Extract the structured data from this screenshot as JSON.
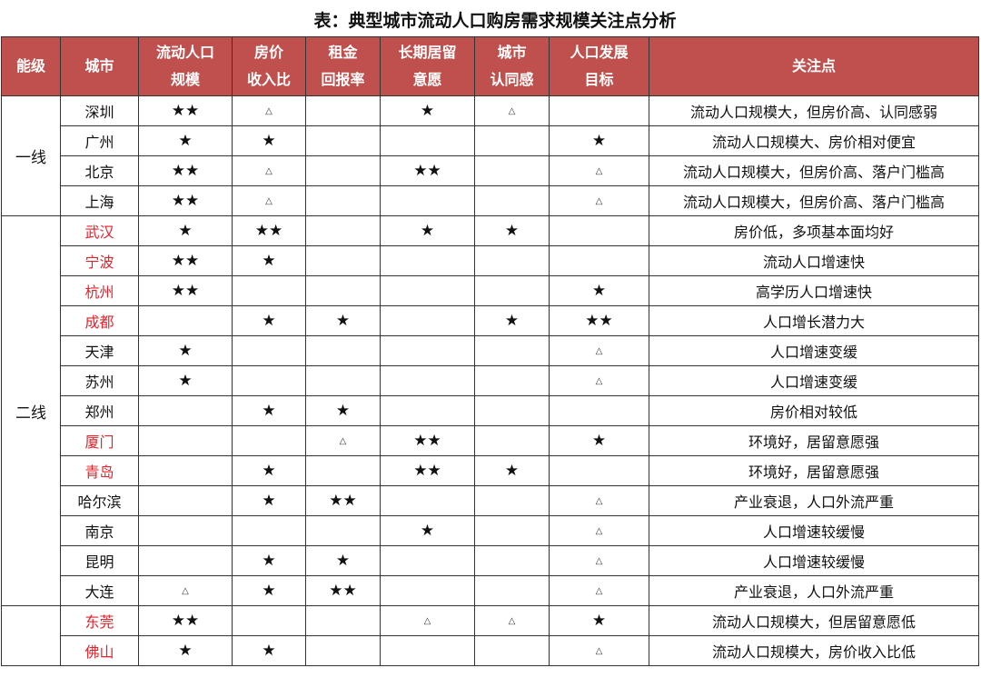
{
  "title": "表：典型城市流动人口购房需求规模关注点分析",
  "colors": {
    "header_bg": "#c0504d",
    "highlight_city": "#e8202a"
  },
  "legend_symbols": {
    "strong": "★",
    "very_strong": "★★",
    "weak": "△"
  },
  "columns": [
    "能级",
    "城市",
    "流动人口\n规模",
    "房价\n收入比",
    "租金\n回报率",
    "长期居留\n意愿",
    "城市\n认同感",
    "人口发展\n目标",
    "关注点"
  ],
  "column_lines": [
    [
      "能级"
    ],
    [
      "城市"
    ],
    [
      "流动人口",
      "规模"
    ],
    [
      "房价",
      "收入比"
    ],
    [
      "租金",
      "回报率"
    ],
    [
      "长期居留",
      "意愿"
    ],
    [
      "城市",
      "认同感"
    ],
    [
      "人口发展",
      "目标"
    ],
    [
      "关注点"
    ]
  ],
  "tiers": [
    {
      "label": "一线",
      "rows": 4
    },
    {
      "label": "二线",
      "rows": 13
    },
    {
      "label": "",
      "rows": 2
    }
  ],
  "rows": [
    {
      "city": "深圳",
      "highlight": false,
      "v": [
        "★★",
        "△",
        "",
        "★",
        "△",
        ""
      ],
      "note": "流动人口规模大，但房价高、认同感弱"
    },
    {
      "city": "广州",
      "highlight": false,
      "v": [
        "★",
        "★",
        "",
        "",
        "",
        "★"
      ],
      "note": "流动人口规模大、房价相对便宜"
    },
    {
      "city": "北京",
      "highlight": false,
      "v": [
        "★★",
        "△",
        "",
        "★★",
        "",
        "△"
      ],
      "note": "流动人口规模大，但房价高、落户门槛高"
    },
    {
      "city": "上海",
      "highlight": false,
      "v": [
        "★★",
        "△",
        "",
        "",
        "",
        "△"
      ],
      "note": "流动人口规模大，但房价高、落户门槛高"
    },
    {
      "city": "武汉",
      "highlight": true,
      "v": [
        "★",
        "★★",
        "",
        "★",
        "★",
        ""
      ],
      "note": "房价低，多项基本面均好"
    },
    {
      "city": "宁波",
      "highlight": true,
      "v": [
        "★★",
        "★",
        "",
        "",
        "",
        ""
      ],
      "note": "流动人口增速快"
    },
    {
      "city": "杭州",
      "highlight": true,
      "v": [
        "★★",
        "",
        "",
        "",
        "",
        "★"
      ],
      "note": "高学历人口增速快"
    },
    {
      "city": "成都",
      "highlight": true,
      "v": [
        "",
        "★",
        "★",
        "",
        "★",
        "★★"
      ],
      "note": "人口增长潜力大"
    },
    {
      "city": "天津",
      "highlight": false,
      "v": [
        "★",
        "",
        "",
        "",
        "",
        "△"
      ],
      "note": "人口增速变缓"
    },
    {
      "city": "苏州",
      "highlight": false,
      "v": [
        "★",
        "",
        "",
        "",
        "",
        "△"
      ],
      "note": "人口增速变缓"
    },
    {
      "city": "郑州",
      "highlight": false,
      "v": [
        "",
        "★",
        "★",
        "",
        "",
        ""
      ],
      "note": "房价相对较低"
    },
    {
      "city": "厦门",
      "highlight": true,
      "v": [
        "",
        "",
        "△",
        "★★",
        "",
        "★"
      ],
      "note": "环境好，居留意愿强"
    },
    {
      "city": "青岛",
      "highlight": true,
      "v": [
        "",
        "★",
        "",
        "★★",
        "★",
        ""
      ],
      "note": "环境好，居留意愿强"
    },
    {
      "city": "哈尔滨",
      "highlight": false,
      "v": [
        "",
        "★",
        "★★",
        "",
        "",
        "△"
      ],
      "note": "产业衰退，人口外流严重"
    },
    {
      "city": "南京",
      "highlight": false,
      "v": [
        "",
        "",
        "",
        "★",
        "",
        "△"
      ],
      "note": "人口增速较缓慢"
    },
    {
      "city": "昆明",
      "highlight": false,
      "v": [
        "",
        "★",
        "★",
        "",
        "",
        "△"
      ],
      "note": "人口增速较缓慢"
    },
    {
      "city": "大连",
      "highlight": false,
      "v": [
        "△",
        "★",
        "★★",
        "",
        "",
        "△"
      ],
      "note": "产业衰退，人口外流严重"
    },
    {
      "city": "东莞",
      "highlight": true,
      "v": [
        "★★",
        "",
        "",
        "△",
        "△",
        "★"
      ],
      "note": "流动人口规模大，但居留意愿低"
    },
    {
      "city": "佛山",
      "highlight": true,
      "v": [
        "★",
        "★",
        "",
        "",
        "",
        "△"
      ],
      "note": "流动人口规模大，房价收入比低"
    }
  ]
}
